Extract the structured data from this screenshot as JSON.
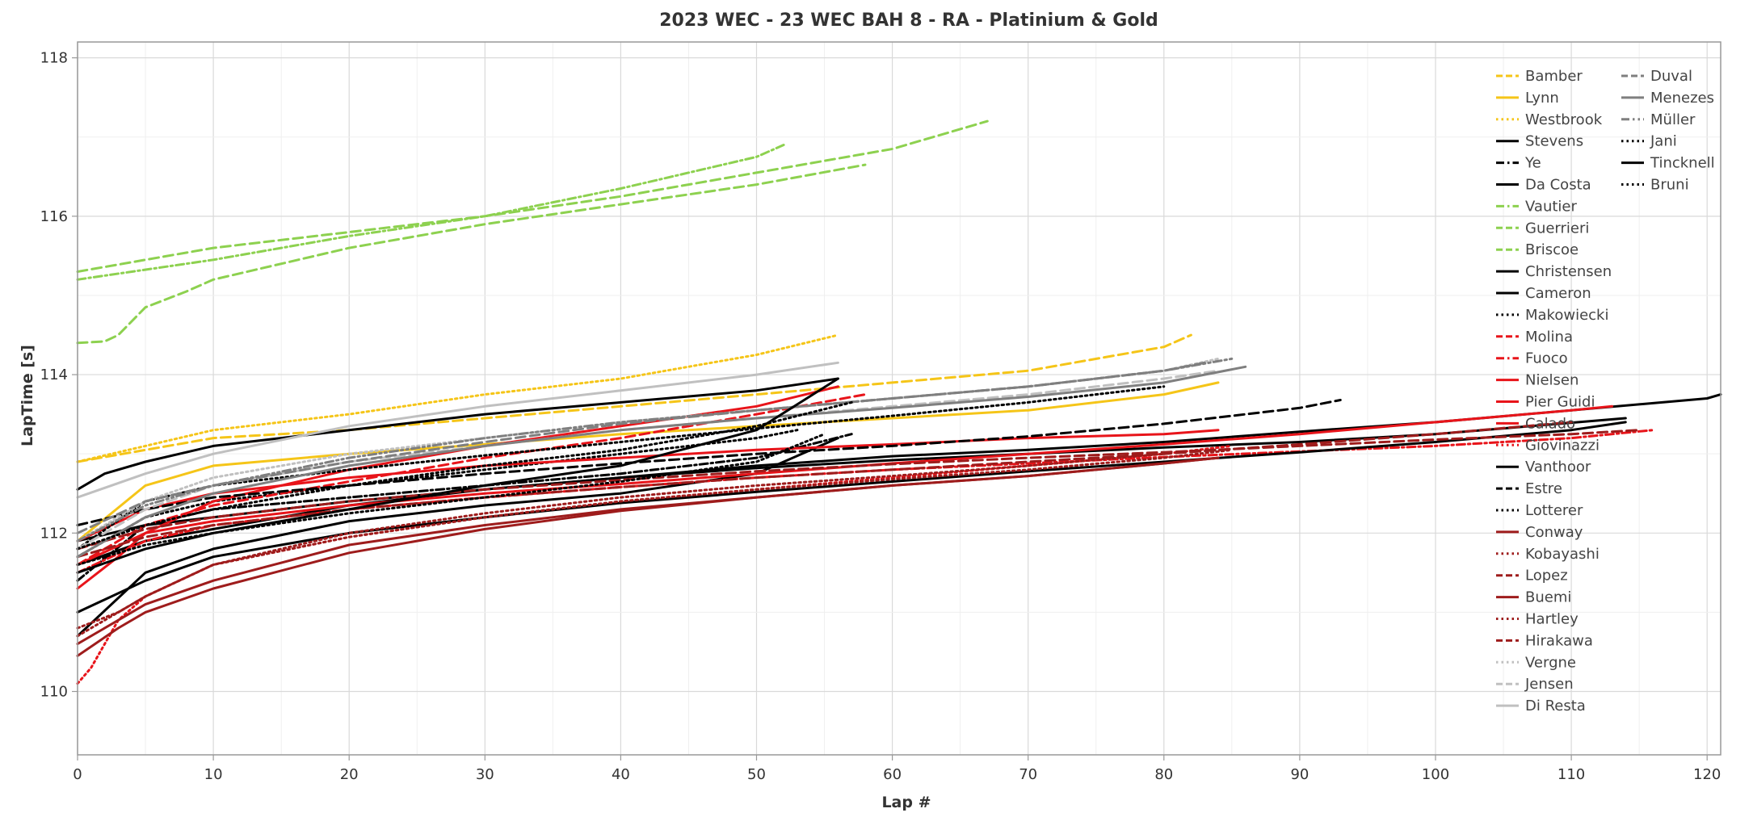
{
  "chart_data": {
    "type": "line",
    "title": "2023 WEC - 23 WEC BAH 8 - RA -  Platinium & Gold",
    "xlabel": "Lap #",
    "ylabel": "LapTime [s]",
    "xlim": [
      0,
      121
    ],
    "ylim": [
      109.2,
      118.2
    ],
    "xticks": [
      "0",
      "10",
      "20",
      "30",
      "40",
      "50",
      "60",
      "70",
      "80",
      "90",
      "100",
      "110",
      "120"
    ],
    "yticks": [
      "110",
      "112",
      "114",
      "116",
      "118"
    ],
    "grid": true,
    "legend_position": "top-right",
    "series": [
      {
        "name": "Bamber",
        "color": "#F5C518",
        "dash": "dash",
        "x": [
          0,
          10,
          20,
          30,
          40,
          50,
          60,
          70,
          80,
          82
        ],
        "y": [
          112.9,
          113.2,
          113.3,
          113.45,
          113.6,
          113.75,
          113.9,
          114.05,
          114.35,
          114.5
        ]
      },
      {
        "name": "Lynn",
        "color": "#F5C518",
        "dash": "solid",
        "x": [
          0,
          5,
          10,
          20,
          30,
          40,
          50,
          60,
          70,
          80,
          84
        ],
        "y": [
          111.9,
          112.6,
          112.85,
          113.0,
          113.12,
          113.25,
          113.35,
          113.45,
          113.55,
          113.75,
          113.9
        ]
      },
      {
        "name": "Westbrook",
        "color": "#F5C518",
        "dash": "dot",
        "x": [
          0,
          5,
          10,
          20,
          30,
          40,
          50,
          56
        ],
        "y": [
          112.9,
          113.1,
          113.3,
          113.5,
          113.75,
          113.95,
          114.25,
          114.5
        ]
      },
      {
        "name": "Stevens",
        "color": "#000000",
        "dash": "solid",
        "x": [
          0,
          2,
          5,
          10,
          20,
          30,
          40,
          50,
          56
        ],
        "y": [
          112.55,
          112.75,
          112.9,
          113.1,
          113.3,
          113.5,
          113.65,
          113.8,
          113.95
        ]
      },
      {
        "name": "Ye",
        "color": "#000000",
        "dash": "dashdot",
        "x": [
          0,
          5,
          10,
          20,
          30,
          40,
          50,
          57
        ],
        "y": [
          111.4,
          112.1,
          112.3,
          112.45,
          112.6,
          112.75,
          112.95,
          113.25
        ]
      },
      {
        "name": "Da Costa",
        "color": "#000000",
        "dash": "solid",
        "x": [
          0,
          5,
          10,
          20,
          30,
          40,
          50,
          56
        ],
        "y": [
          110.7,
          111.5,
          111.8,
          112.15,
          112.35,
          112.5,
          112.75,
          113.2
        ]
      },
      {
        "name": "Vautier",
        "color": "#8DD14F",
        "dash": "dashdot",
        "x": [
          0,
          10,
          20,
          30,
          40,
          50,
          52
        ],
        "y": [
          115.2,
          115.45,
          115.75,
          116.0,
          116.35,
          116.75,
          116.9
        ]
      },
      {
        "name": "Guerrieri",
        "color": "#8DD14F",
        "dash": "dash",
        "x": [
          0,
          2,
          3,
          5,
          8,
          10,
          20,
          30,
          40,
          50,
          58
        ],
        "y": [
          114.4,
          114.42,
          114.5,
          114.85,
          115.05,
          115.2,
          115.6,
          115.9,
          116.15,
          116.4,
          116.65
        ]
      },
      {
        "name": "Briscoe",
        "color": "#8DD14F",
        "dash": "dash",
        "x": [
          0,
          10,
          20,
          30,
          40,
          50,
          60,
          67
        ],
        "y": [
          115.3,
          115.6,
          115.8,
          116.0,
          116.25,
          116.55,
          116.85,
          117.2
        ]
      },
      {
        "name": "Christensen",
        "color": "#000000",
        "dash": "solid",
        "x": [
          0,
          5,
          10,
          20,
          30,
          40,
          50,
          60,
          70,
          80,
          90,
          100,
          110,
          120,
          121
        ],
        "y": [
          111.6,
          111.9,
          112.05,
          112.35,
          112.55,
          112.7,
          112.85,
          112.97,
          113.05,
          113.15,
          113.28,
          113.4,
          113.55,
          113.7,
          113.75
        ]
      },
      {
        "name": "Cameron",
        "color": "#000000",
        "dash": "solid",
        "x": [
          0,
          5,
          10,
          20,
          30,
          40,
          50,
          60,
          70,
          80,
          90,
          100,
          114
        ],
        "y": [
          111.9,
          112.1,
          112.2,
          112.4,
          112.55,
          112.7,
          112.82,
          112.92,
          113.0,
          113.08,
          113.15,
          113.25,
          113.45
        ]
      },
      {
        "name": "Makowiecki",
        "color": "#000000",
        "dash": "dot",
        "x": [
          0,
          5,
          10,
          20,
          30,
          40,
          50,
          53
        ],
        "y": [
          111.7,
          112.2,
          112.4,
          112.6,
          112.8,
          113.0,
          113.2,
          113.3
        ]
      },
      {
        "name": "Molina",
        "color": "#E8141A",
        "dash": "dash",
        "x": [
          0,
          3,
          5,
          10,
          20,
          30,
          40,
          50,
          58
        ],
        "y": [
          111.6,
          111.9,
          112.1,
          112.35,
          112.65,
          112.95,
          113.2,
          113.5,
          113.75
        ]
      },
      {
        "name": "Fuoco",
        "color": "#E8141A",
        "dash": "dashdot",
        "x": [
          0,
          5,
          10,
          20,
          30,
          40,
          50,
          60,
          70,
          80,
          90,
          100,
          110,
          116
        ],
        "y": [
          111.5,
          111.9,
          112.1,
          112.3,
          112.45,
          112.58,
          112.7,
          112.8,
          112.88,
          112.96,
          113.03,
          113.1,
          113.2,
          113.3
        ]
      },
      {
        "name": "Nielsen",
        "color": "#E8141A",
        "dash": "solid",
        "x": [
          0,
          3,
          5,
          10,
          20,
          30,
          40,
          50,
          56
        ],
        "y": [
          111.3,
          111.7,
          112.0,
          112.4,
          112.8,
          113.1,
          113.35,
          113.6,
          113.85
        ]
      },
      {
        "name": "Pier Guidi",
        "color": "#E8141A",
        "dash": "solid",
        "x": [
          0,
          5,
          10,
          20,
          30,
          40,
          50,
          60,
          70,
          80,
          90,
          100,
          110,
          113
        ],
        "y": [
          111.6,
          112.0,
          112.15,
          112.35,
          112.5,
          112.62,
          112.75,
          112.88,
          113.0,
          113.12,
          113.25,
          113.4,
          113.55,
          113.6
        ]
      },
      {
        "name": "Calado",
        "color": "#E8141A",
        "dash": "solid",
        "x": [
          0,
          5,
          10,
          20,
          30,
          40,
          50,
          60,
          70,
          80,
          84
        ],
        "y": [
          111.9,
          112.3,
          112.5,
          112.7,
          112.85,
          112.95,
          113.05,
          113.12,
          113.2,
          113.25,
          113.3
        ]
      },
      {
        "name": "Giovinazzi",
        "color": "#E8141A",
        "dash": "dot",
        "x": [
          0,
          1,
          3,
          5,
          10,
          20,
          30,
          40,
          50,
          60,
          70,
          80,
          85
        ],
        "y": [
          110.1,
          110.3,
          110.9,
          111.2,
          111.6,
          111.95,
          112.2,
          112.4,
          112.55,
          112.7,
          112.85,
          113.0,
          113.1
        ]
      },
      {
        "name": "Vanthoor",
        "color": "#000000",
        "dash": "solid",
        "x": [
          0,
          5,
          10,
          20,
          30,
          40,
          50,
          60,
          70,
          80,
          90,
          100,
          110,
          114
        ],
        "y": [
          111.0,
          111.4,
          111.7,
          112.0,
          112.2,
          112.38,
          112.52,
          112.65,
          112.78,
          112.9,
          113.02,
          113.15,
          113.3,
          113.4
        ]
      },
      {
        "name": "Estre",
        "color": "#000000",
        "dash": "dash",
        "x": [
          0,
          5,
          10,
          20,
          30,
          40,
          50,
          60,
          70,
          80,
          90,
          93
        ],
        "y": [
          112.1,
          112.3,
          112.45,
          112.6,
          112.75,
          112.88,
          113.0,
          113.1,
          113.22,
          113.38,
          113.58,
          113.68
        ]
      },
      {
        "name": "Lotterer",
        "color": "#000000",
        "dash": "dot",
        "x": [
          0,
          5,
          10,
          20,
          30,
          40,
          50,
          60,
          70,
          80
        ],
        "y": [
          111.8,
          112.4,
          112.6,
          112.8,
          112.98,
          113.15,
          113.32,
          113.48,
          113.65,
          113.85
        ]
      },
      {
        "name": "Conway",
        "color": "#9E1C1C",
        "dash": "solid",
        "x": [
          0,
          5,
          10,
          20,
          30,
          40,
          50,
          60,
          70,
          80,
          84
        ],
        "y": [
          110.6,
          111.1,
          111.4,
          111.85,
          112.1,
          112.3,
          112.45,
          112.6,
          112.72,
          112.88,
          112.95
        ]
      },
      {
        "name": "Kobayashi",
        "color": "#9E1C1C",
        "dash": "dot",
        "x": [
          0,
          3,
          5,
          10,
          20,
          30,
          40,
          50,
          60,
          70,
          80,
          85
        ],
        "y": [
          110.8,
          111.0,
          111.2,
          111.6,
          111.95,
          112.2,
          112.4,
          112.55,
          112.68,
          112.8,
          112.95,
          113.05
        ]
      },
      {
        "name": "Lopez",
        "color": "#9E1C1C",
        "dash": "dash",
        "x": [
          0,
          5,
          10,
          20,
          30,
          40,
          50,
          60,
          70,
          80,
          90,
          100,
          110
        ],
        "y": [
          111.7,
          111.95,
          112.1,
          112.3,
          112.45,
          112.58,
          112.7,
          112.8,
          112.9,
          113.0,
          113.12,
          113.25,
          113.4
        ]
      },
      {
        "name": "Buemi",
        "color": "#9E1C1C",
        "dash": "solid",
        "x": [
          0,
          3,
          5,
          10,
          20,
          30,
          40,
          50,
          60,
          70,
          80,
          84
        ],
        "y": [
          110.45,
          110.8,
          111.0,
          111.3,
          111.75,
          112.05,
          112.28,
          112.45,
          112.6,
          112.72,
          112.88,
          112.95
        ]
      },
      {
        "name": "Hartley",
        "color": "#9E1C1C",
        "dash": "dot",
        "x": [
          0,
          3,
          5,
          10,
          20,
          30,
          40,
          50,
          60,
          70,
          80
        ],
        "y": [
          110.7,
          111.0,
          111.2,
          111.6,
          112.0,
          112.25,
          112.45,
          112.6,
          112.72,
          112.85,
          113.0
        ]
      },
      {
        "name": "Hirakawa",
        "color": "#9E1C1C",
        "dash": "dash",
        "x": [
          0,
          5,
          10,
          20,
          30,
          40,
          50,
          60,
          70,
          80,
          90,
          100,
          110,
          115
        ],
        "y": [
          111.8,
          112.05,
          112.2,
          112.4,
          112.55,
          112.67,
          112.78,
          112.87,
          112.95,
          113.02,
          113.1,
          113.18,
          113.25,
          113.3
        ]
      },
      {
        "name": "Vergne",
        "color": "#C0C0C0",
        "dash": "dot",
        "x": [
          0,
          5,
          10,
          20,
          30,
          40,
          50,
          60,
          70,
          80,
          84
        ],
        "y": [
          111.9,
          112.4,
          112.7,
          113.0,
          113.2,
          113.4,
          113.55,
          113.7,
          113.85,
          114.05,
          114.2
        ]
      },
      {
        "name": "Jensen",
        "color": "#C0C0C0",
        "dash": "dash",
        "x": [
          0,
          5,
          10,
          20,
          30,
          40,
          50,
          60,
          70,
          80,
          84
        ],
        "y": [
          111.8,
          112.3,
          112.6,
          112.9,
          113.1,
          113.3,
          113.45,
          113.6,
          113.75,
          113.95,
          114.05
        ]
      },
      {
        "name": "Di Resta",
        "color": "#C0C0C0",
        "dash": "solid",
        "x": [
          0,
          5,
          10,
          20,
          30,
          40,
          50,
          56
        ],
        "y": [
          112.45,
          112.75,
          113.0,
          113.35,
          113.6,
          113.8,
          114.0,
          114.15
        ]
      },
      {
        "name": "Duval",
        "color": "#7F7F7F",
        "dash": "dash",
        "x": [
          0,
          5,
          10,
          20,
          30,
          40,
          50,
          60,
          70,
          80,
          83
        ],
        "y": [
          112.0,
          112.4,
          112.6,
          112.9,
          113.15,
          113.38,
          113.55,
          113.7,
          113.85,
          114.05,
          114.15
        ]
      },
      {
        "name": "Menezes",
        "color": "#7F7F7F",
        "dash": "solid",
        "x": [
          0,
          5,
          10,
          20,
          30,
          40,
          50,
          60,
          70,
          80,
          86
        ],
        "y": [
          111.7,
          112.2,
          112.5,
          112.85,
          113.1,
          113.3,
          113.45,
          113.58,
          113.72,
          113.9,
          114.1
        ]
      },
      {
        "name": "Müller",
        "color": "#7F7F7F",
        "dash": "dashdotdot",
        "x": [
          0,
          5,
          10,
          20,
          30,
          40,
          50,
          60,
          70,
          80,
          85
        ],
        "y": [
          111.9,
          112.35,
          112.6,
          112.95,
          113.2,
          113.4,
          113.55,
          113.7,
          113.85,
          114.05,
          114.2
        ]
      },
      {
        "name": "Jani",
        "color": "#000000",
        "dash": "dot",
        "x": [
          0,
          5,
          10,
          20,
          30,
          40,
          50,
          57
        ],
        "y": [
          111.8,
          112.1,
          112.3,
          112.6,
          112.85,
          113.05,
          113.35,
          113.65
        ]
      },
      {
        "name": "Tincknell",
        "color": "#000000",
        "dash": "solid",
        "x": [
          0,
          5,
          10,
          20,
          30,
          40,
          50,
          56
        ],
        "y": [
          111.5,
          111.8,
          112.0,
          112.3,
          112.6,
          112.85,
          113.3,
          113.95
        ]
      },
      {
        "name": "Bruni",
        "color": "#000000",
        "dash": "dot",
        "x": [
          0,
          5,
          10,
          20,
          30,
          40,
          50,
          55
        ],
        "y": [
          111.6,
          111.85,
          112.0,
          112.25,
          112.45,
          112.65,
          112.9,
          113.25
        ]
      }
    ]
  }
}
